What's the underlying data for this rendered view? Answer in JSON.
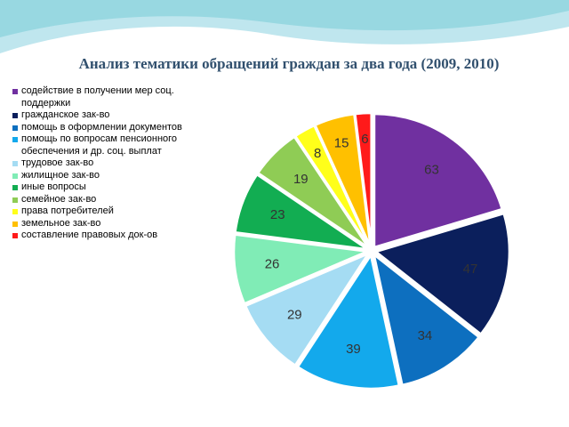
{
  "chart_data": {
    "type": "pie",
    "title": "Анализ тематики обращений граждан за два года (2009, 2010)",
    "categories": [
      "содействие в получении  мер соц. поддержки",
      "гражданское зак-во",
      "помощь в оформлении документов",
      "помощь по вопросам пенсионного обеспечения и др. соц. выплат",
      "трудовое зак-во",
      "жилищное зак-во",
      "иные  вопросы",
      "семейное зак-во",
      "права потребителей",
      "земельное зак-во",
      "составление правовых док-ов"
    ],
    "values": [
      63,
      47,
      34,
      39,
      29,
      26,
      23,
      19,
      8,
      15,
      6
    ],
    "colors": [
      "#7030a0",
      "#0b1f5c",
      "#0d6fbf",
      "#13a9ec",
      "#a5dcf3",
      "#80ecb6",
      "#12ad52",
      "#8fcc55",
      "#ffff1a",
      "#ffc000",
      "#ff1a1a"
    ],
    "legend": "left"
  }
}
